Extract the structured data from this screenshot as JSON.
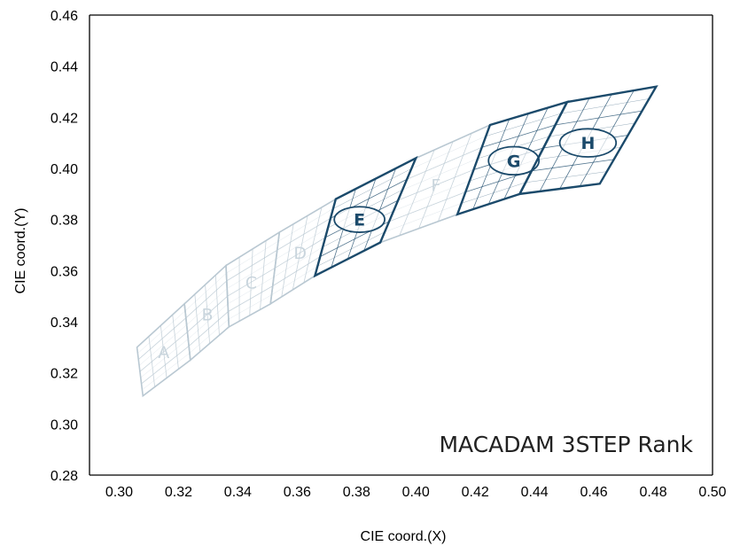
{
  "chart_data": {
    "type": "scatter",
    "xlabel": "CIE coord.(X)",
    "ylabel": "CIE coord.(Y)",
    "xlim": [
      0.29,
      0.5
    ],
    "ylim": [
      0.28,
      0.46
    ],
    "x_ticks": [
      "0.30",
      "0.32",
      "0.34",
      "0.36",
      "0.38",
      "0.40",
      "0.42",
      "0.44",
      "0.46",
      "0.48",
      "0.50"
    ],
    "y_ticks": [
      "0.28",
      "0.30",
      "0.32",
      "0.34",
      "0.36",
      "0.38",
      "0.40",
      "0.42",
      "0.44",
      "0.46"
    ],
    "annotation": "MACADAM 3STEP Rank",
    "grid": false,
    "colors": {
      "highlight": "#1b4a6b",
      "faded": "#b9c8d2",
      "faded_label": "#c9d5dd"
    },
    "bins": [
      {
        "label": "A",
        "highlighted": false,
        "corners": [
          [
            0.306,
            0.33
          ],
          [
            0.322,
            0.347
          ],
          [
            0.324,
            0.325
          ],
          [
            0.308,
            0.311
          ]
        ],
        "ellipse": null
      },
      {
        "label": "B",
        "highlighted": false,
        "corners": [
          [
            0.322,
            0.347
          ],
          [
            0.336,
            0.362
          ],
          [
            0.337,
            0.338
          ],
          [
            0.324,
            0.325
          ]
        ],
        "ellipse": null
      },
      {
        "label": "C",
        "highlighted": false,
        "corners": [
          [
            0.336,
            0.362
          ],
          [
            0.354,
            0.375
          ],
          [
            0.351,
            0.347
          ],
          [
            0.337,
            0.338
          ]
        ],
        "ellipse": null
      },
      {
        "label": "D",
        "highlighted": false,
        "corners": [
          [
            0.354,
            0.375
          ],
          [
            0.373,
            0.388
          ],
          [
            0.366,
            0.358
          ],
          [
            0.351,
            0.347
          ]
        ],
        "ellipse": null
      },
      {
        "label": "E",
        "highlighted": true,
        "corners": [
          [
            0.373,
            0.388
          ],
          [
            0.4,
            0.404
          ],
          [
            0.388,
            0.371
          ],
          [
            0.366,
            0.358
          ]
        ],
        "ellipse": {
          "cx": 0.381,
          "cy": 0.38,
          "rx": 0.0085,
          "ry": 0.005
        }
      },
      {
        "label": "F",
        "highlighted": false,
        "corners": [
          [
            0.4,
            0.404
          ],
          [
            0.425,
            0.417
          ],
          [
            0.414,
            0.382
          ],
          [
            0.388,
            0.371
          ]
        ],
        "ellipse": null
      },
      {
        "label": "G",
        "highlighted": true,
        "corners": [
          [
            0.425,
            0.417
          ],
          [
            0.451,
            0.426
          ],
          [
            0.435,
            0.39
          ],
          [
            0.414,
            0.382
          ]
        ],
        "ellipse": {
          "cx": 0.433,
          "cy": 0.403,
          "rx": 0.0085,
          "ry": 0.0055
        }
      },
      {
        "label": "H",
        "highlighted": true,
        "corners": [
          [
            0.451,
            0.426
          ],
          [
            0.481,
            0.432
          ],
          [
            0.462,
            0.394
          ],
          [
            0.435,
            0.39
          ]
        ],
        "ellipse": {
          "cx": 0.458,
          "cy": 0.41,
          "rx": 0.0095,
          "ry": 0.0055
        }
      }
    ]
  }
}
